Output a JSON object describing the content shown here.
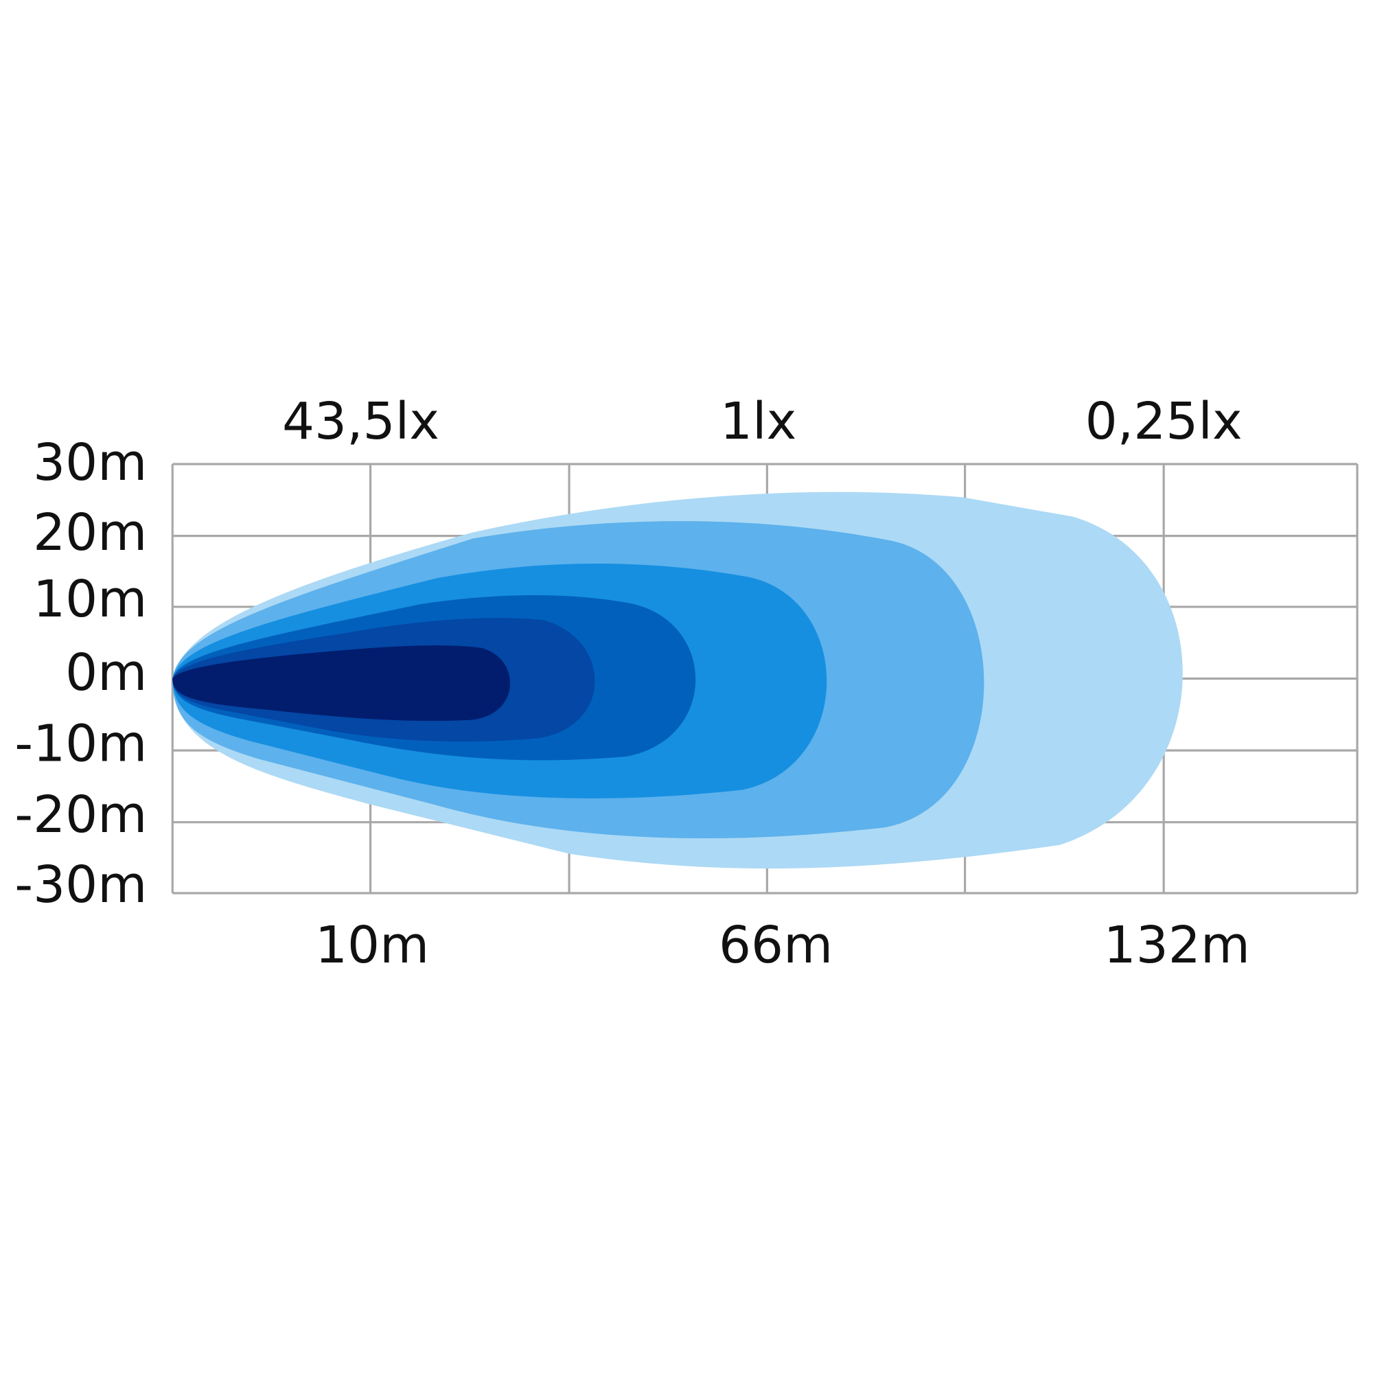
{
  "y_axis": {
    "labels": [
      "30m",
      "20m",
      "10m",
      "0m",
      "-10m",
      "-20m",
      "-30m"
    ]
  },
  "top_labels": [
    "43,5lx",
    "1lx",
    "0,25lx"
  ],
  "bottom_labels": [
    "10m",
    "66m",
    "132m"
  ]
}
